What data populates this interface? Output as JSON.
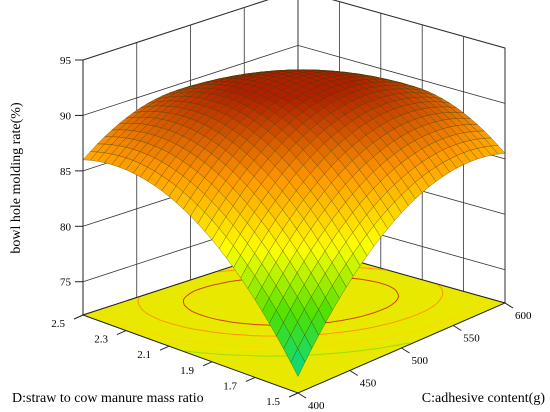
{
  "chart_data": {
    "type": "surface3d",
    "title": "",
    "x_axis": {
      "label": "C:adhesive content(g)",
      "range": [
        400,
        600
      ],
      "ticks": [
        "400",
        "450",
        "500",
        "550",
        "600"
      ]
    },
    "y_axis": {
      "label": "D:straw to cow manure mass ratio",
      "range": [
        1.5,
        2.5
      ],
      "ticks": [
        "1.5",
        "1.7",
        "1.9",
        "2.1",
        "2.3",
        "2.5"
      ]
    },
    "z_axis": {
      "label": "bowl hole molding rate(%)",
      "range": [
        72,
        95
      ],
      "ticks": [
        "75",
        "80",
        "85",
        "90",
        "95"
      ]
    },
    "surface": {
      "model": "quadratic",
      "peak": {
        "x": 500,
        "y": 2.0,
        "z": 91.5
      },
      "corners": [
        {
          "x": 400,
          "y": 1.5,
          "z": 73.5
        },
        {
          "x": 600,
          "y": 1.5,
          "z": 85.5
        },
        {
          "x": 400,
          "y": 2.5,
          "z": 86.0
        },
        {
          "x": 600,
          "y": 2.5,
          "z": 83.5
        }
      ],
      "colormap": [
        "#00d890",
        "#4fe000",
        "#ffff00",
        "#ff9900",
        "#b02000"
      ]
    },
    "floor_contour_color": "#e8e800",
    "contour_line_colors": [
      "#cc4400",
      "#ff9900",
      "#ffd800",
      "#99e000"
    ],
    "grid": true
  }
}
